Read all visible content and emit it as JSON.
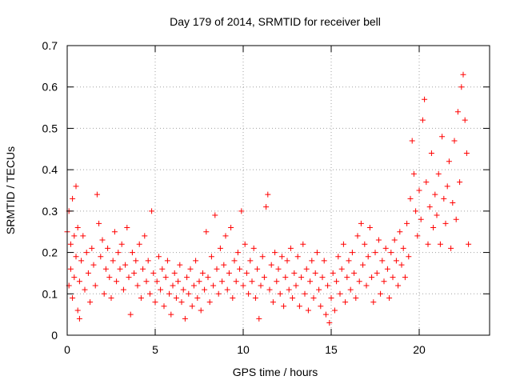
{
  "chart_data": {
    "type": "scatter",
    "title": "Day 179 of 2014, SRMTID for receiver bell",
    "xlabel": "GPS time / hours",
    "ylabel": "SRMTID / TECUs",
    "xlim": [
      0,
      24
    ],
    "ylim": [
      0,
      0.7
    ],
    "xticks": [
      0,
      5,
      10,
      15,
      20
    ],
    "yticks": [
      0,
      0.1,
      0.2,
      0.3,
      0.4,
      0.5,
      0.6,
      0.7
    ],
    "xtick_labels": [
      "0",
      "5",
      "10",
      "15",
      "20"
    ],
    "ytick_labels": [
      "0",
      "0.1",
      "0.2",
      "0.3",
      "0.4",
      "0.5",
      "0.6",
      "0.7"
    ],
    "grid": true,
    "marker": "+",
    "color": "#ff0000",
    "series": [
      {
        "name": "SRMTID",
        "points": [
          [
            0.0,
            0.25
          ],
          [
            0.1,
            0.3
          ],
          [
            0.1,
            0.12
          ],
          [
            0.2,
            0.22
          ],
          [
            0.2,
            0.16
          ],
          [
            0.3,
            0.33
          ],
          [
            0.3,
            0.09
          ],
          [
            0.4,
            0.24
          ],
          [
            0.4,
            0.14
          ],
          [
            0.5,
            0.36
          ],
          [
            0.5,
            0.19
          ],
          [
            0.6,
            0.06
          ],
          [
            0.6,
            0.26
          ],
          [
            0.7,
            0.13
          ],
          [
            0.7,
            0.04
          ],
          [
            0.8,
            0.18
          ],
          [
            0.9,
            0.24
          ],
          [
            1.0,
            0.11
          ],
          [
            1.1,
            0.2
          ],
          [
            1.2,
            0.15
          ],
          [
            1.3,
            0.08
          ],
          [
            1.4,
            0.21
          ],
          [
            1.5,
            0.17
          ],
          [
            1.6,
            0.12
          ],
          [
            1.7,
            0.34
          ],
          [
            1.8,
            0.27
          ],
          [
            1.9,
            0.19
          ],
          [
            2.0,
            0.23
          ],
          [
            2.1,
            0.1
          ],
          [
            2.2,
            0.16
          ],
          [
            2.3,
            0.21
          ],
          [
            2.4,
            0.14
          ],
          [
            2.5,
            0.09
          ],
          [
            2.6,
            0.18
          ],
          [
            2.7,
            0.25
          ],
          [
            2.8,
            0.13
          ],
          [
            2.9,
            0.2
          ],
          [
            3.0,
            0.16
          ],
          [
            3.1,
            0.22
          ],
          [
            3.2,
            0.11
          ],
          [
            3.3,
            0.17
          ],
          [
            3.4,
            0.26
          ],
          [
            3.5,
            0.14
          ],
          [
            3.6,
            0.05
          ],
          [
            3.7,
            0.2
          ],
          [
            3.8,
            0.15
          ],
          [
            3.9,
            0.18
          ],
          [
            4.0,
            0.12
          ],
          [
            4.1,
            0.22
          ],
          [
            4.2,
            0.09
          ],
          [
            4.3,
            0.16
          ],
          [
            4.4,
            0.24
          ],
          [
            4.5,
            0.13
          ],
          [
            4.6,
            0.18
          ],
          [
            4.7,
            0.1
          ],
          [
            4.8,
            0.3
          ],
          [
            4.9,
            0.15
          ],
          [
            5.0,
            0.08
          ],
          [
            5.1,
            0.13
          ],
          [
            5.2,
            0.19
          ],
          [
            5.3,
            0.11
          ],
          [
            5.4,
            0.16
          ],
          [
            5.5,
            0.07
          ],
          [
            5.6,
            0.14
          ],
          [
            5.7,
            0.18
          ],
          [
            5.8,
            0.1
          ],
          [
            5.9,
            0.05
          ],
          [
            6.0,
            0.12
          ],
          [
            6.1,
            0.15
          ],
          [
            6.2,
            0.09
          ],
          [
            6.3,
            0.13
          ],
          [
            6.4,
            0.17
          ],
          [
            6.5,
            0.08
          ],
          [
            6.6,
            0.11
          ],
          [
            6.7,
            0.04
          ],
          [
            6.8,
            0.14
          ],
          [
            6.9,
            0.1
          ],
          [
            7.0,
            0.16
          ],
          [
            7.1,
            0.07
          ],
          [
            7.2,
            0.12
          ],
          [
            7.3,
            0.18
          ],
          [
            7.4,
            0.09
          ],
          [
            7.5,
            0.13
          ],
          [
            7.6,
            0.06
          ],
          [
            7.7,
            0.15
          ],
          [
            7.8,
            0.11
          ],
          [
            7.9,
            0.25
          ],
          [
            8.0,
            0.14
          ],
          [
            8.1,
            0.08
          ],
          [
            8.2,
            0.19
          ],
          [
            8.3,
            0.12
          ],
          [
            8.4,
            0.29
          ],
          [
            8.5,
            0.16
          ],
          [
            8.6,
            0.1
          ],
          [
            8.7,
            0.21
          ],
          [
            8.8,
            0.13
          ],
          [
            8.9,
            0.17
          ],
          [
            9.0,
            0.24
          ],
          [
            9.1,
            0.11
          ],
          [
            9.2,
            0.15
          ],
          [
            9.3,
            0.26
          ],
          [
            9.4,
            0.09
          ],
          [
            9.5,
            0.18
          ],
          [
            9.6,
            0.13
          ],
          [
            9.7,
            0.2
          ],
          [
            9.8,
            0.16
          ],
          [
            9.9,
            0.3
          ],
          [
            10.0,
            0.12
          ],
          [
            10.1,
            0.22
          ],
          [
            10.2,
            0.15
          ],
          [
            10.3,
            0.1
          ],
          [
            10.4,
            0.18
          ],
          [
            10.5,
            0.13
          ],
          [
            10.6,
            0.21
          ],
          [
            10.7,
            0.09
          ],
          [
            10.8,
            0.16
          ],
          [
            10.9,
            0.04
          ],
          [
            11.0,
            0.12
          ],
          [
            11.1,
            0.19
          ],
          [
            11.2,
            0.14
          ],
          [
            11.3,
            0.31
          ],
          [
            11.4,
            0.34
          ],
          [
            11.5,
            0.11
          ],
          [
            11.6,
            0.17
          ],
          [
            11.7,
            0.08
          ],
          [
            11.8,
            0.2
          ],
          [
            11.9,
            0.13
          ],
          [
            12.0,
            0.16
          ],
          [
            12.1,
            0.1
          ],
          [
            12.2,
            0.19
          ],
          [
            12.3,
            0.07
          ],
          [
            12.4,
            0.14
          ],
          [
            12.5,
            0.18
          ],
          [
            12.6,
            0.11
          ],
          [
            12.7,
            0.21
          ],
          [
            12.8,
            0.09
          ],
          [
            12.9,
            0.15
          ],
          [
            13.0,
            0.12
          ],
          [
            13.1,
            0.19
          ],
          [
            13.2,
            0.07
          ],
          [
            13.3,
            0.14
          ],
          [
            13.4,
            0.22
          ],
          [
            13.5,
            0.1
          ],
          [
            13.6,
            0.16
          ],
          [
            13.7,
            0.06
          ],
          [
            13.8,
            0.13
          ],
          [
            13.9,
            0.18
          ],
          [
            14.0,
            0.09
          ],
          [
            14.1,
            0.15
          ],
          [
            14.2,
            0.2
          ],
          [
            14.3,
            0.11
          ],
          [
            14.4,
            0.07
          ],
          [
            14.5,
            0.14
          ],
          [
            14.6,
            0.18
          ],
          [
            14.7,
            0.05
          ],
          [
            14.8,
            0.12
          ],
          [
            14.9,
            0.03
          ],
          [
            15.0,
            0.09
          ],
          [
            15.1,
            0.15
          ],
          [
            15.2,
            0.06
          ],
          [
            15.3,
            0.13
          ],
          [
            15.4,
            0.19
          ],
          [
            15.5,
            0.1
          ],
          [
            15.6,
            0.16
          ],
          [
            15.7,
            0.22
          ],
          [
            15.8,
            0.08
          ],
          [
            15.9,
            0.14
          ],
          [
            16.0,
            0.18
          ],
          [
            16.1,
            0.11
          ],
          [
            16.2,
            0.2
          ],
          [
            16.3,
            0.15
          ],
          [
            16.4,
            0.09
          ],
          [
            16.5,
            0.24
          ],
          [
            16.6,
            0.13
          ],
          [
            16.7,
            0.27
          ],
          [
            16.8,
            0.17
          ],
          [
            16.9,
            0.22
          ],
          [
            17.0,
            0.12
          ],
          [
            17.1,
            0.19
          ],
          [
            17.2,
            0.26
          ],
          [
            17.3,
            0.14
          ],
          [
            17.4,
            0.08
          ],
          [
            17.5,
            0.2
          ],
          [
            17.6,
            0.15
          ],
          [
            17.7,
            0.23
          ],
          [
            17.8,
            0.1
          ],
          [
            17.9,
            0.18
          ],
          [
            18.0,
            0.13
          ],
          [
            18.1,
            0.21
          ],
          [
            18.2,
            0.16
          ],
          [
            18.3,
            0.09
          ],
          [
            18.4,
            0.2
          ],
          [
            18.5,
            0.14
          ],
          [
            18.6,
            0.23
          ],
          [
            18.7,
            0.18
          ],
          [
            18.8,
            0.12
          ],
          [
            18.9,
            0.25
          ],
          [
            19.0,
            0.17
          ],
          [
            19.1,
            0.21
          ],
          [
            19.2,
            0.14
          ],
          [
            19.3,
            0.27
          ],
          [
            19.4,
            0.19
          ],
          [
            19.5,
            0.33
          ],
          [
            19.6,
            0.47
          ],
          [
            19.7,
            0.39
          ],
          [
            19.8,
            0.3
          ],
          [
            19.9,
            0.24
          ],
          [
            20.0,
            0.35
          ],
          [
            20.1,
            0.28
          ],
          [
            20.2,
            0.52
          ],
          [
            20.3,
            0.57
          ],
          [
            20.4,
            0.37
          ],
          [
            20.5,
            0.22
          ],
          [
            20.6,
            0.31
          ],
          [
            20.7,
            0.44
          ],
          [
            20.8,
            0.26
          ],
          [
            20.9,
            0.34
          ],
          [
            21.0,
            0.29
          ],
          [
            21.1,
            0.39
          ],
          [
            21.2,
            0.22
          ],
          [
            21.3,
            0.48
          ],
          [
            21.4,
            0.33
          ],
          [
            21.5,
            0.27
          ],
          [
            21.6,
            0.36
          ],
          [
            21.7,
            0.42
          ],
          [
            21.8,
            0.21
          ],
          [
            21.9,
            0.32
          ],
          [
            22.0,
            0.47
          ],
          [
            22.1,
            0.28
          ],
          [
            22.2,
            0.54
          ],
          [
            22.3,
            0.37
          ],
          [
            22.4,
            0.6
          ],
          [
            22.5,
            0.63
          ],
          [
            22.6,
            0.52
          ],
          [
            22.7,
            0.44
          ],
          [
            22.8,
            0.22
          ]
        ]
      }
    ]
  }
}
